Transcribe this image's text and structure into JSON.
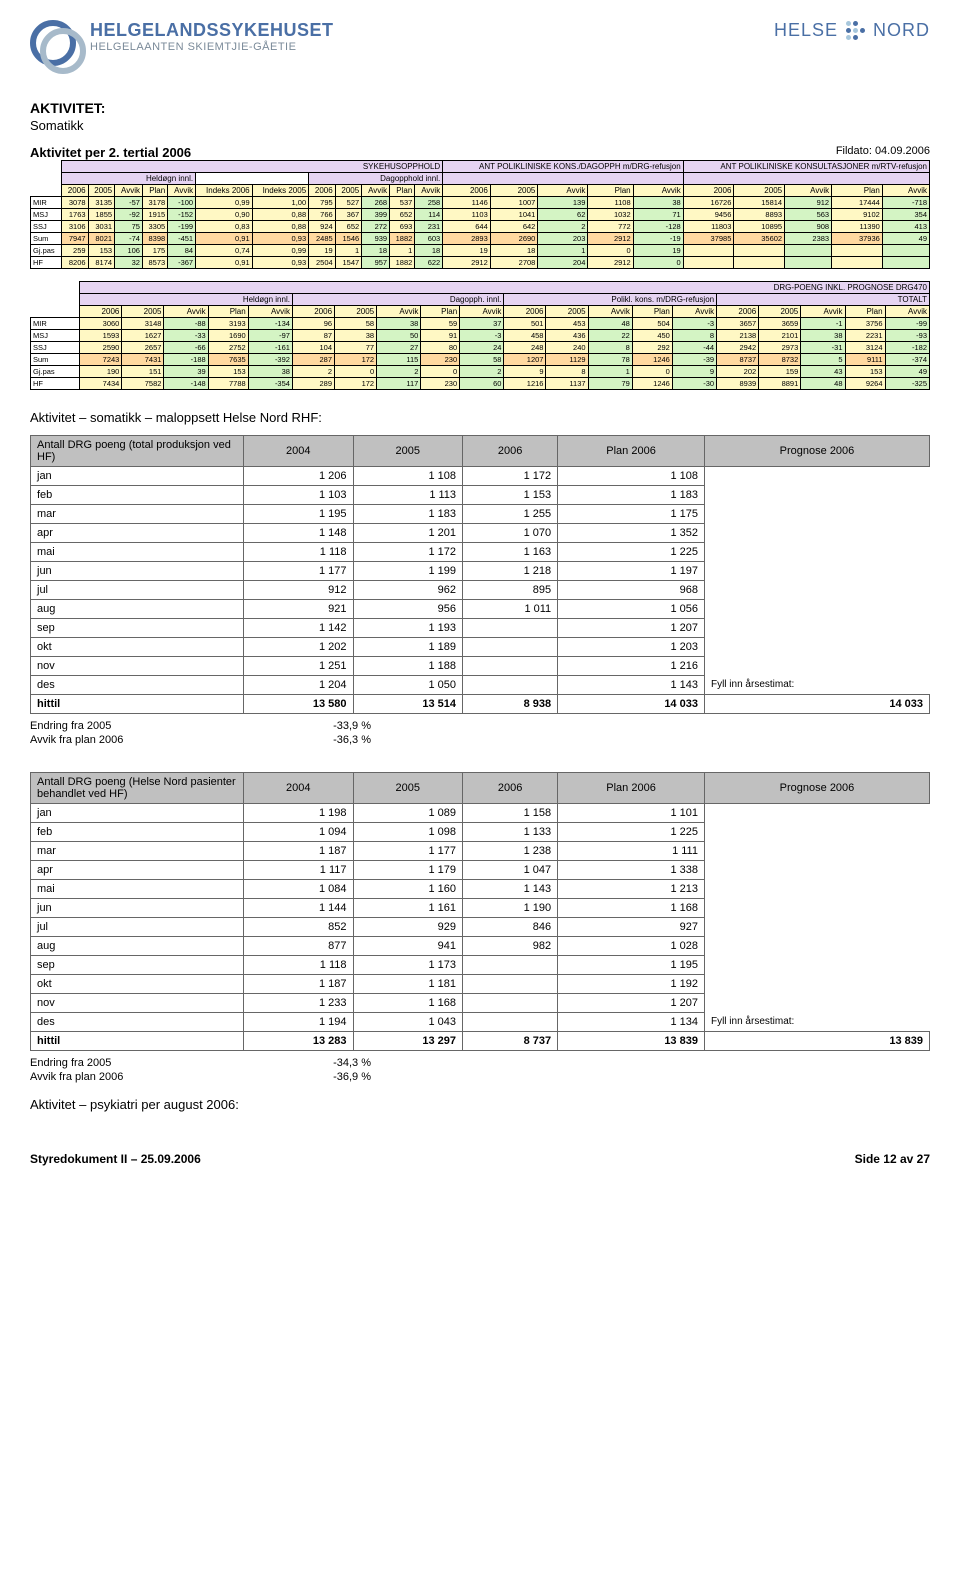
{
  "brand": {
    "line1": "HELGELANDSSYKEHUSET",
    "line2": "HELGELAANTEN SKIEMTJIE-GÅETIE",
    "right1": "HELSE",
    "right2": "NORD"
  },
  "section": {
    "title": "AKTIVITET:",
    "sub": "Somatikk"
  },
  "t1": {
    "title": "Aktivitet per 2. tertial 2006",
    "fildato": "Fildato: 04.09.2006",
    "groups": [
      "SYKEHUSOPPHOLD",
      "",
      "ANT POLIKLINISKE KONS./DAGOPPH m/DRG-refusjon",
      "ANT POLIKLINISKE KONSULTASJONER m/RTV-refusjon"
    ],
    "subgroups": [
      "Heldøgn innl.",
      "",
      "Dagopphold innl.",
      "",
      ""
    ],
    "cols": [
      "",
      "2006",
      "2005",
      "Avvik",
      "Plan",
      "Avvik",
      "Indeks 2006",
      "Indeks 2005",
      "2006",
      "2005",
      "Avvik",
      "Plan",
      "Avvik",
      "2006",
      "2005",
      "Avvik",
      "Plan",
      "Avvik",
      "2006",
      "2005",
      "Avvik",
      "Plan",
      "Avvik"
    ],
    "rows": [
      [
        "MIR",
        3078,
        3135,
        -57,
        3178,
        -100,
        "0,99",
        "1,00",
        795,
        527,
        268,
        537,
        258,
        1146,
        1007,
        139,
        1108,
        38,
        16726,
        15814,
        912,
        17444,
        -718
      ],
      [
        "MSJ",
        1763,
        1855,
        -92,
        1915,
        -152,
        "0,90",
        "0,88",
        766,
        367,
        399,
        652,
        114,
        1103,
        1041,
        62,
        1032,
        71,
        9456,
        8893,
        563,
        9102,
        354
      ],
      [
        "SSJ",
        3106,
        3031,
        75,
        3305,
        -199,
        "0,83",
        "0,88",
        924,
        652,
        272,
        693,
        231,
        644,
        642,
        2,
        772,
        -128,
        11803,
        10895,
        908,
        11390,
        413
      ],
      [
        "Sum",
        7947,
        8021,
        -74,
        8398,
        -451,
        "0,91",
        "0,93",
        2485,
        1546,
        939,
        1882,
        603,
        2893,
        2690,
        203,
        2912,
        -19,
        37985,
        35602,
        2383,
        37936,
        49
      ],
      [
        "Gj.pas",
        259,
        153,
        106,
        175,
        84,
        "0,74",
        "0,99",
        19,
        1,
        18,
        1,
        18,
        19,
        18,
        1,
        0,
        19,
        "",
        "",
        "",
        "",
        ""
      ],
      [
        "HF",
        8206,
        8174,
        32,
        8573,
        -367,
        "0,91",
        "0,93",
        2504,
        1547,
        957,
        1882,
        622,
        2912,
        2708,
        204,
        2912,
        0,
        "",
        "",
        "",
        "",
        ""
      ]
    ]
  },
  "t2": {
    "title": "DRG-POENG INKL. PROGNOSE DRG470",
    "subgroups": [
      "Heldøgn innl.",
      "Dagopph. innl.",
      "Polikl. kons. m/DRG-refusjon",
      "TOTALT"
    ],
    "cols": [
      "",
      "2006",
      "2005",
      "Avvik",
      "Plan",
      "Avvik",
      "2006",
      "2005",
      "Avvik",
      "Plan",
      "Avvik",
      "2006",
      "2005",
      "Avvik",
      "Plan",
      "Avvik",
      "2006",
      "2005",
      "Avvik",
      "Plan",
      "Avvik"
    ],
    "rows": [
      [
        "MIR",
        3060,
        3148,
        -88,
        3193,
        -134,
        96,
        58,
        38,
        59,
        37,
        501,
        453,
        48,
        504,
        -3,
        3657,
        3659,
        -1,
        3756,
        -99
      ],
      [
        "MSJ",
        1593,
        1627,
        -33,
        1690,
        -97,
        87,
        38,
        50,
        91,
        -3,
        458,
        436,
        22,
        450,
        8,
        2138,
        2101,
        38,
        2231,
        -93
      ],
      [
        "SSJ",
        2590,
        2657,
        -66,
        2752,
        -161,
        104,
        77,
        27,
        80,
        24,
        248,
        240,
        8,
        292,
        -44,
        2942,
        2973,
        -31,
        3124,
        -182
      ],
      [
        "Sum",
        7243,
        7431,
        -188,
        7635,
        -392,
        287,
        172,
        115,
        230,
        58,
        1207,
        1129,
        78,
        1246,
        -39,
        8737,
        8732,
        5,
        9111,
        -374
      ],
      [
        "Gj.pas",
        190,
        151,
        39,
        153,
        38,
        2,
        0,
        2,
        0,
        2,
        9,
        8,
        1,
        0,
        9,
        202,
        159,
        43,
        153,
        49
      ],
      [
        "HF",
        7434,
        7582,
        -148,
        7788,
        -354,
        289,
        172,
        117,
        230,
        60,
        1216,
        1137,
        79,
        1246,
        -30,
        8939,
        8891,
        48,
        9264,
        -325
      ]
    ]
  },
  "mal_title": "Aktivitet – somatikk – maloppsett Helse Nord RHF:",
  "g1": {
    "title": "Antall DRG poeng (total produksjon ved HF)",
    "cols": [
      "2004",
      "2005",
      "2006",
      "Plan 2006",
      "Prognose 2006"
    ],
    "rows": [
      [
        "jan",
        "1 206",
        "1 108",
        "1 172",
        "1 108",
        ""
      ],
      [
        "feb",
        "1 103",
        "1 113",
        "1 153",
        "1 183",
        ""
      ],
      [
        "mar",
        "1 195",
        "1 183",
        "1 255",
        "1 175",
        ""
      ],
      [
        "apr",
        "1 148",
        "1 201",
        "1 070",
        "1 352",
        ""
      ],
      [
        "mai",
        "1 118",
        "1 172",
        "1 163",
        "1 225",
        ""
      ],
      [
        "jun",
        "1 177",
        "1 199",
        "1 218",
        "1 197",
        ""
      ],
      [
        "jul",
        "912",
        "962",
        "895",
        "968",
        ""
      ],
      [
        "aug",
        "921",
        "956",
        "1 011",
        "1 056",
        ""
      ],
      [
        "sep",
        "1 142",
        "1 193",
        "",
        "1 207",
        ""
      ],
      [
        "okt",
        "1 202",
        "1 189",
        "",
        "1 203",
        ""
      ],
      [
        "nov",
        "1 251",
        "1 188",
        "",
        "1 216",
        ""
      ],
      [
        "des",
        "1 204",
        "1 050",
        "",
        "1 143",
        "Fyll inn årsestimat:"
      ]
    ],
    "hittil": [
      "hittil",
      "13 580",
      "13 514",
      "8 938",
      "14 033",
      "14 033"
    ],
    "endring": "Endring fra 2005",
    "endring_val": "-33,9 %",
    "avvik": "Avvik fra plan 2006",
    "avvik_val": "-36,3 %"
  },
  "g2": {
    "title": "Antall DRG poeng (Helse Nord pasienter behandlet ved HF)",
    "cols": [
      "2004",
      "2005",
      "2006",
      "Plan 2006",
      "Prognose 2006"
    ],
    "rows": [
      [
        "jan",
        "1 198",
        "1 089",
        "1 158",
        "1 101",
        ""
      ],
      [
        "feb",
        "1 094",
        "1 098",
        "1 133",
        "1 225",
        ""
      ],
      [
        "mar",
        "1 187",
        "1 177",
        "1 238",
        "1 111",
        ""
      ],
      [
        "apr",
        "1 117",
        "1 179",
        "1 047",
        "1 338",
        ""
      ],
      [
        "mai",
        "1 084",
        "1 160",
        "1 143",
        "1 213",
        ""
      ],
      [
        "jun",
        "1 144",
        "1 161",
        "1 190",
        "1 168",
        ""
      ],
      [
        "jul",
        "852",
        "929",
        "846",
        "927",
        ""
      ],
      [
        "aug",
        "877",
        "941",
        "982",
        "1 028",
        ""
      ],
      [
        "sep",
        "1 118",
        "1 173",
        "",
        "1 195",
        ""
      ],
      [
        "okt",
        "1 187",
        "1 181",
        "",
        "1 192",
        ""
      ],
      [
        "nov",
        "1 233",
        "1 168",
        "",
        "1 207",
        ""
      ],
      [
        "des",
        "1 194",
        "1 043",
        "",
        "1 134",
        "Fyll inn årsestimat:"
      ]
    ],
    "hittil": [
      "hittil",
      "13 283",
      "13 297",
      "8 737",
      "13 839",
      "13 839"
    ],
    "endring": "Endring fra 2005",
    "endring_val": "-34,3 %",
    "avvik": "Avvik fra plan 2006",
    "avvik_val": "-36,9 %"
  },
  "psyk": "Aktivitet – psykiatri per august 2006:",
  "footer": {
    "left": "Styredokument II – 25.09.2006",
    "right": "Side 12 av 27"
  }
}
